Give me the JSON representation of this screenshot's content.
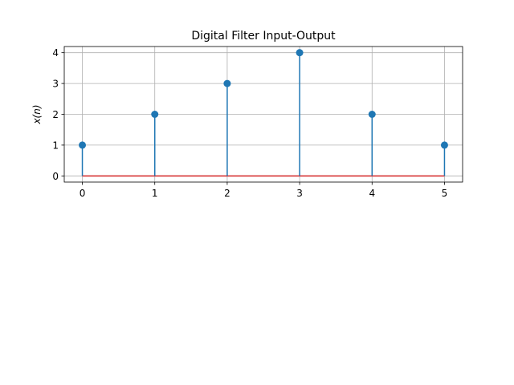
{
  "chart_data": {
    "type": "stem",
    "title": "Digital Filter Input-Output",
    "xlabel": "",
    "ylabel": "x(n)",
    "x": [
      0,
      1,
      2,
      3,
      4,
      5
    ],
    "series": [
      {
        "values": [
          1,
          2,
          3,
          4,
          2,
          1
        ]
      }
    ],
    "xlim": [
      -0.25,
      5.25
    ],
    "ylim": [
      -0.2,
      4.2
    ],
    "xticks": [
      0,
      1,
      2,
      3,
      4,
      5
    ],
    "yticks": [
      0,
      1,
      2,
      3,
      4
    ],
    "grid": true,
    "colors": {
      "stem": "#1f77b4",
      "baseline": "#d62728",
      "grid": "#b0b0b0"
    }
  }
}
